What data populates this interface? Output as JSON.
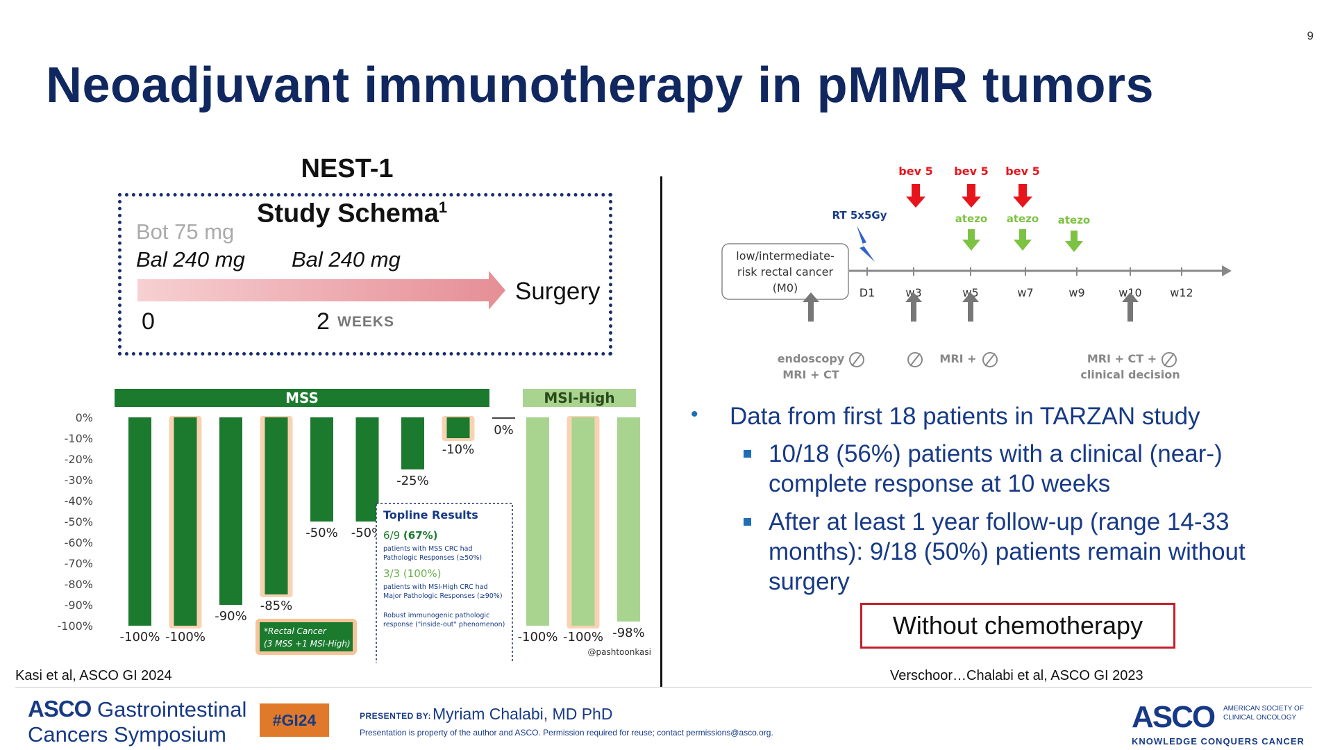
{
  "slide_number": "9",
  "title": "Neoadjuvant immunotherapy in pMMR tumors",
  "nest1": {
    "heading": "NEST-1",
    "schema_title": "Study Schema",
    "schema_sup": "1",
    "bot": "Bot 75 mg",
    "bal_1": "Bal 240 mg",
    "bal_2": "Bal 240 mg",
    "surgery": "Surgery",
    "time_0": "0",
    "time_2": "2",
    "weeks": "WEEKS"
  },
  "chart_data": {
    "type": "bar",
    "groups": [
      {
        "name": "MSS",
        "color": "#1b7a2e",
        "values": [
          -100,
          -100,
          -90,
          -85,
          -50,
          -50,
          -25,
          -10,
          0
        ],
        "labels": [
          "-100%",
          "-100%",
          "-90%",
          "-85%",
          "-50%",
          "-50%",
          "-25%",
          "-10%",
          "0%"
        ],
        "rectal": [
          false,
          true,
          false,
          true,
          false,
          false,
          false,
          true,
          false
        ]
      },
      {
        "name": "MSI-High",
        "color": "#a8d490",
        "values": [
          -100,
          -100,
          -98
        ],
        "labels": [
          "-100%",
          "-100%",
          "-98%"
        ],
        "rectal": [
          false,
          true,
          false
        ]
      }
    ],
    "yticks": [
      "0%",
      "-10%",
      "-20%",
      "-30%",
      "-40%",
      "-50%",
      "-60%",
      "-70%",
      "-80%",
      "-90%",
      "-100%"
    ],
    "ylim": [
      -100,
      0
    ],
    "legend_note": [
      "*Rectal Cancer",
      "(3 MSS +1 MSI-High)"
    ],
    "topline": {
      "title": "Topline Results",
      "r1_value": "6/9",
      "r1_pct": "(67%)",
      "r1_desc_1": "patients with MSS CRC had",
      "r1_desc_2": "Pathologic Responses (≥50%)",
      "r2": "3/3 (100%)",
      "r2_desc_1": "patients with MSI-High CRC had",
      "r2_desc_2": "Major Pathologic Responses (≥90%)",
      "r3_desc_1": "Robust immunogenic pathologic",
      "r3_desc_2": "response (\"inside-out\" phenomenon)"
    },
    "handle": "@pashtoonkasi"
  },
  "cite_left": "Kasi et al, ASCO GI 2024",
  "tarzan": {
    "bev": [
      "bev 5",
      "bev 5",
      "bev 5"
    ],
    "atezo": [
      "atezo",
      "atezo",
      "atezo"
    ],
    "rt": "RT 5x5Gy",
    "box_lines": [
      "low/intermediate-",
      "risk rectal cancer",
      "(M0)"
    ],
    "timepoints": [
      "D1",
      "w3",
      "w5",
      "w7",
      "w9",
      "w10",
      "w12"
    ],
    "assess_1": [
      "endoscopy",
      "MRI + CT"
    ],
    "assess_3": "MRI +",
    "assess_4": [
      "MRI + CT +",
      "clinical decision"
    ]
  },
  "bullets": {
    "main": "Data from first 18 patients in TARZAN study",
    "sub1": "10/18 (56%) patients with a clinical (near-) complete response at 10 weeks",
    "sub2": "After at least 1 year follow-up (range 14-33 months): 9/18 (50%) patients remain without surgery"
  },
  "without_chemo": "Without chemotherapy",
  "cite_right": "Verschoor…Chalabi et al, ASCO GI 2023",
  "footer": {
    "asco_word": "ASCO",
    "gi_word": "Gastrointestinal",
    "cancers_symposium": "Cancers Symposium",
    "hashtag": "#GI24",
    "presented_by": "PRESENTED BY:",
    "presenter": "Myriam Chalabi, MD PhD",
    "property": "Presentation is property of the author and ASCO. Permission required for reuse; contact permissions@asco.org.",
    "asco_logo": "ASCO",
    "society_1": "AMERICAN SOCIETY OF",
    "society_2": "CLINICAL ONCOLOGY",
    "tagline": "KNOWLEDGE CONQUERS CANCER"
  },
  "colors": {
    "title": "#10285f",
    "mss": "#1b7a2e",
    "msi": "#a8d490",
    "bev": "#e8141c",
    "atezo": "#7dc242",
    "box": "#c0202a"
  }
}
